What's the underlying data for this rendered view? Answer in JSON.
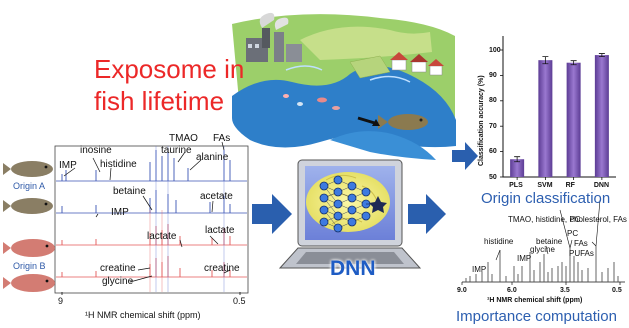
{
  "titles": {
    "exposome_line1": "Exposome in",
    "exposome_line2": "fish lifetime",
    "origin_classification": "Origin classification",
    "importance_computation": "Importance computation",
    "dnn": "DNN"
  },
  "origins": {
    "a": "Origin A",
    "b": "Origin B"
  },
  "nmr_panel": {
    "peaks": {
      "tmao": "TMAO",
      "fas": "FAs",
      "taurine": "taurine",
      "alanine": "alanine",
      "inosine": "inosine",
      "histidine": "histidine",
      "imp_top": "IMP",
      "betaine": "betaine",
      "acetate": "acetate",
      "imp_mid": "IMP",
      "lactate_left": "lactate",
      "lactate_right": "lactate",
      "creatine_left": "creatine",
      "creatine_right": "creatine",
      "glycine": "glycine"
    },
    "axis": {
      "left": "9",
      "right": "0.5",
      "xlabel": "¹H NMR chemical shift (ppm)"
    }
  },
  "importance_panel": {
    "labels": {
      "header": "TMAO, histidine, PC",
      "cholesterol": "cholesterol, FAs",
      "histidine": "histidine",
      "betaine": "betaine",
      "pc": "PC",
      "glycine": "glycine",
      "fas": "FAs",
      "imp_right": "IMP",
      "pufas": "PUFAs",
      "imp_left": "IMP"
    },
    "ticks": [
      "9.0",
      "6.0",
      "3.5",
      "0.5"
    ],
    "xlabel": "¹H NMR chemical shift (ppm)"
  },
  "chart_data": {
    "type": "bar",
    "categories": [
      "PLS",
      "SVM",
      "RF",
      "DNN"
    ],
    "values": [
      57,
      96,
      95,
      98
    ],
    "errors": [
      1.0,
      1.4,
      0.8,
      0.6
    ],
    "ylabel": "Classification accuracy (%)",
    "xlabel": "",
    "ylim": [
      50,
      100
    ],
    "yticks": [
      50,
      60,
      70,
      80,
      90,
      100
    ],
    "grid": false,
    "bar_color": "#7a55b5"
  },
  "colors": {
    "red": "#ec2828",
    "blue": "#2d5fb0",
    "arrow": "#2a5fae",
    "bar": "#7a55b5"
  }
}
